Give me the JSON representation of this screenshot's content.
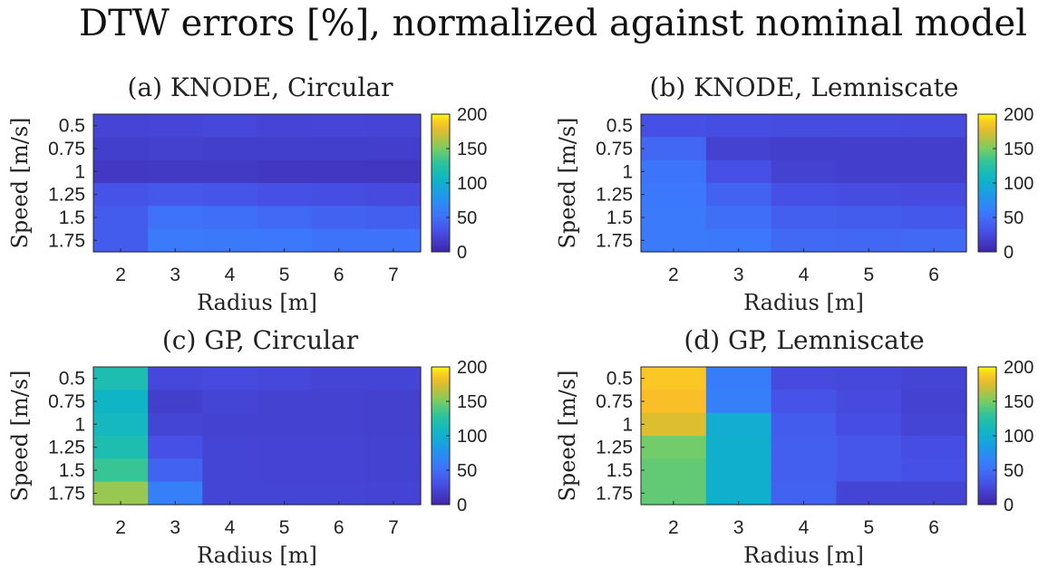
{
  "figure_title": "DTW errors [%], normalized against nominal model",
  "chart_data": [
    {
      "type": "heatmap",
      "title": "(a) KNODE, Circular",
      "xlabel": "Radius [m]",
      "ylabel": "Speed [m/s]",
      "x": [
        "2",
        "3",
        "4",
        "5",
        "6",
        "7"
      ],
      "y": [
        "0.5",
        "0.75",
        "1",
        "1.25",
        "1.5",
        "1.75"
      ],
      "values": [
        [
          22,
          23,
          24,
          22,
          23,
          22
        ],
        [
          18,
          19,
          18,
          18,
          18,
          17
        ],
        [
          13,
          14,
          14,
          12,
          12,
          12
        ],
        [
          32,
          35,
          33,
          30,
          28,
          26
        ],
        [
          38,
          52,
          50,
          46,
          42,
          40
        ],
        [
          38,
          58,
          57,
          56,
          53,
          52
        ]
      ],
      "colorbar": {
        "range": [
          0,
          200
        ],
        "ticks": [
          "0",
          "50",
          "100",
          "150",
          "200"
        ]
      }
    },
    {
      "type": "heatmap",
      "title": "(b) KNODE, Lemniscate",
      "xlabel": "Radius [m]",
      "ylabel": "Speed [m/s]",
      "x": [
        "2",
        "3",
        "4",
        "5",
        "6"
      ],
      "y": [
        "0.5",
        "0.75",
        "1",
        "1.25",
        "1.5",
        "1.75"
      ],
      "values": [
        [
          30,
          28,
          27,
          27,
          26
        ],
        [
          45,
          20,
          18,
          17,
          17
        ],
        [
          54,
          30,
          20,
          17,
          17
        ],
        [
          56,
          42,
          30,
          27,
          26
        ],
        [
          58,
          50,
          40,
          38,
          36
        ],
        [
          58,
          56,
          46,
          45,
          46
        ]
      ],
      "colorbar": {
        "range": [
          0,
          200
        ],
        "ticks": [
          "0",
          "50",
          "100",
          "150",
          "200"
        ]
      }
    },
    {
      "type": "heatmap",
      "title": "(c) GP, Circular",
      "xlabel": "Radius [m]",
      "ylabel": "Speed [m/s]",
      "x": [
        "2",
        "3",
        "4",
        "5",
        "6",
        "7"
      ],
      "y": [
        "0.5",
        "0.75",
        "1",
        "1.25",
        "1.5",
        "1.75"
      ],
      "values": [
        [
          118,
          24,
          26,
          24,
          22,
          22
        ],
        [
          106,
          18,
          22,
          20,
          20,
          19
        ],
        [
          110,
          22,
          20,
          20,
          20,
          19
        ],
        [
          118,
          30,
          22,
          21,
          21,
          20
        ],
        [
          132,
          42,
          22,
          21,
          21,
          20
        ],
        [
          158,
          62,
          22,
          22,
          22,
          21
        ]
      ],
      "colorbar": {
        "range": [
          0,
          200
        ],
        "ticks": [
          "0",
          "50",
          "100",
          "150",
          "200"
        ]
      }
    },
    {
      "type": "heatmap",
      "title": "(d) GP, Lemniscate",
      "xlabel": "Radius [m]",
      "ylabel": "Speed [m/s]",
      "x": [
        "2",
        "3",
        "4",
        "5",
        "6"
      ],
      "y": [
        "0.5",
        "0.75",
        "1",
        "1.25",
        "1.5",
        "1.75"
      ],
      "values": [
        [
          188,
          60,
          26,
          24,
          22
        ],
        [
          186,
          62,
          32,
          26,
          20
        ],
        [
          176,
          98,
          38,
          28,
          22
        ],
        [
          148,
          100,
          40,
          34,
          28
        ],
        [
          144,
          100,
          40,
          34,
          30
        ],
        [
          144,
          100,
          42,
          22,
          22
        ]
      ],
      "colorbar": {
        "range": [
          0,
          200
        ],
        "ticks": [
          "0",
          "50",
          "100",
          "150",
          "200"
        ]
      }
    }
  ]
}
